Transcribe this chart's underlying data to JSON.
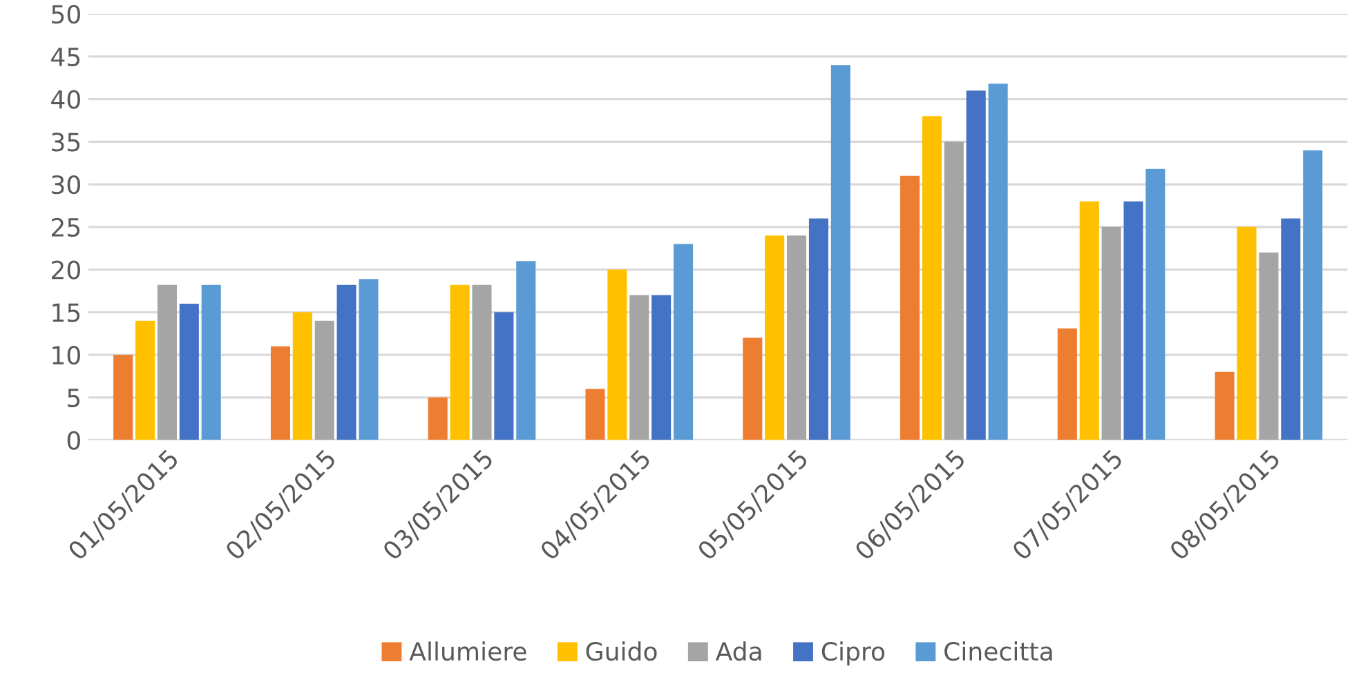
{
  "chart_data": {
    "type": "bar",
    "categories": [
      "01/05/2015",
      "02/05/2015",
      "03/05/2015",
      "04/05/2015",
      "05/05/2015",
      "06/05/2015",
      "07/05/2015",
      "08/05/2015"
    ],
    "series": [
      {
        "name": "Allumiere",
        "color": "#ed7d31",
        "values": [
          10,
          11,
          5,
          6,
          12,
          31,
          13.1,
          8
        ]
      },
      {
        "name": "Guido",
        "color": "#ffc000",
        "values": [
          14,
          15,
          18.2,
          20,
          24,
          38,
          28,
          25
        ]
      },
      {
        "name": "Ada",
        "color": "#a5a5a5",
        "values": [
          18.2,
          14,
          18.2,
          17,
          24,
          35,
          25,
          22
        ]
      },
      {
        "name": "Cipro",
        "color": "#4472c4",
        "values": [
          16,
          18.2,
          15,
          17,
          26,
          41,
          28,
          26
        ]
      },
      {
        "name": "Cinecitta",
        "color": "#5b9bd5",
        "values": [
          18.2,
          18.9,
          21,
          23,
          44,
          41.8,
          31.8,
          34
        ]
      }
    ],
    "ylim": [
      0,
      50
    ],
    "yticks": [
      0,
      5,
      10,
      15,
      20,
      25,
      30,
      35,
      40,
      45,
      50
    ],
    "grid": "y",
    "legend": "bottom"
  }
}
